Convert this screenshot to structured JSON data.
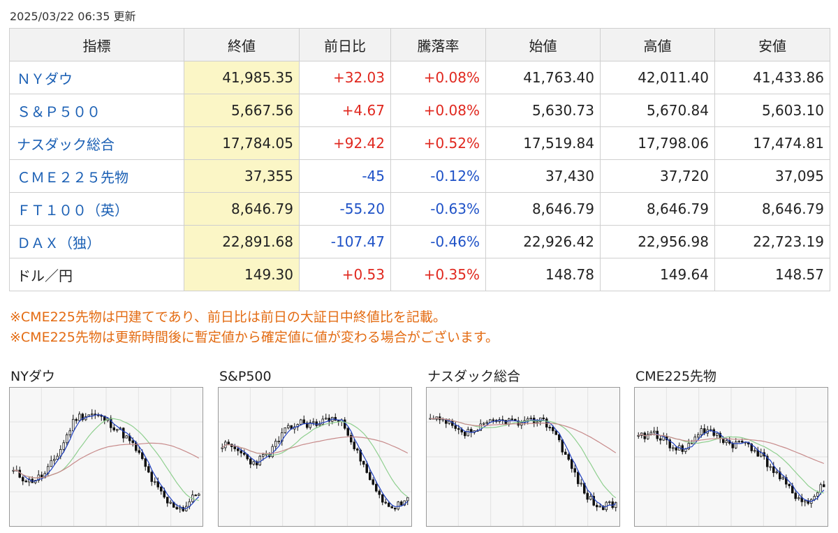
{
  "updated": "2025/03/22 06:35 更新",
  "table": {
    "headers": [
      "指標",
      "終値",
      "前日比",
      "騰落率",
      "始値",
      "高値",
      "安値"
    ],
    "rows": [
      {
        "name": "ＮＹダウ",
        "link": true,
        "close": "41,985.35",
        "change": "+32.03",
        "rate": "+0.08%",
        "dir": "up",
        "open": "41,763.40",
        "high": "42,011.40",
        "low": "41,433.86"
      },
      {
        "name": "Ｓ＆Ｐ５００",
        "link": true,
        "close": "5,667.56",
        "change": "+4.67",
        "rate": "+0.08%",
        "dir": "up",
        "open": "5,630.73",
        "high": "5,670.84",
        "low": "5,603.10"
      },
      {
        "name": "ナスダック総合",
        "link": true,
        "close": "17,784.05",
        "change": "+92.42",
        "rate": "+0.52%",
        "dir": "up",
        "open": "17,519.84",
        "high": "17,798.06",
        "low": "17,474.81"
      },
      {
        "name": "ＣＭＥ２２５先物",
        "link": true,
        "close": "37,355",
        "change": "-45",
        "rate": "-0.12%",
        "dir": "down",
        "open": "37,430",
        "high": "37,720",
        "low": "37,095"
      },
      {
        "name": "ＦＴ１００（英）",
        "link": true,
        "close": "8,646.79",
        "change": "-55.20",
        "rate": "-0.63%",
        "dir": "down",
        "open": "8,646.79",
        "high": "8,646.79",
        "low": "8,646.79"
      },
      {
        "name": "ＤＡＸ（独）",
        "link": true,
        "close": "22,891.68",
        "change": "-107.47",
        "rate": "-0.46%",
        "dir": "down",
        "open": "22,926.42",
        "high": "22,956.98",
        "low": "22,723.19"
      },
      {
        "name": "ドル／円",
        "link": false,
        "close": "149.30",
        "change": "+0.53",
        "rate": "+0.35%",
        "dir": "up",
        "open": "148.78",
        "high": "149.64",
        "low": "148.57"
      }
    ]
  },
  "notes": [
    "※CME225先物は円建てであり、前日比は前日の大証日中終値比を記載。",
    "※CME225先物は更新時間後に暫定値から確定値に値が変わる場合がございます。"
  ],
  "colors": {
    "up": "#e0281f",
    "down": "#1f52c7",
    "link": "#1a5fb4",
    "note": "#e36b12",
    "close_bg": "#fbf6c6",
    "ma_short": "#1f3fbf",
    "ma_mid": "#8fcf8f",
    "ma_long": "#c78a8a"
  },
  "charts": [
    {
      "title": "NYダウ",
      "seed": 11,
      "shape": [
        0.38,
        0.3,
        0.35,
        0.55,
        0.82,
        0.85,
        0.8,
        0.7,
        0.55,
        0.3,
        0.12,
        0.08,
        0.22
      ]
    },
    {
      "title": "S&P500",
      "seed": 23,
      "shape": [
        0.6,
        0.55,
        0.45,
        0.52,
        0.7,
        0.78,
        0.76,
        0.82,
        0.75,
        0.45,
        0.2,
        0.08,
        0.15
      ]
    },
    {
      "title": "ナスダック総合",
      "seed": 37,
      "shape": [
        0.8,
        0.78,
        0.68,
        0.72,
        0.78,
        0.8,
        0.76,
        0.82,
        0.72,
        0.45,
        0.2,
        0.08,
        0.12
      ]
    },
    {
      "title": "CME225先物",
      "seed": 41,
      "shape": [
        0.65,
        0.7,
        0.6,
        0.55,
        0.72,
        0.68,
        0.6,
        0.62,
        0.5,
        0.35,
        0.2,
        0.12,
        0.28
      ]
    }
  ]
}
